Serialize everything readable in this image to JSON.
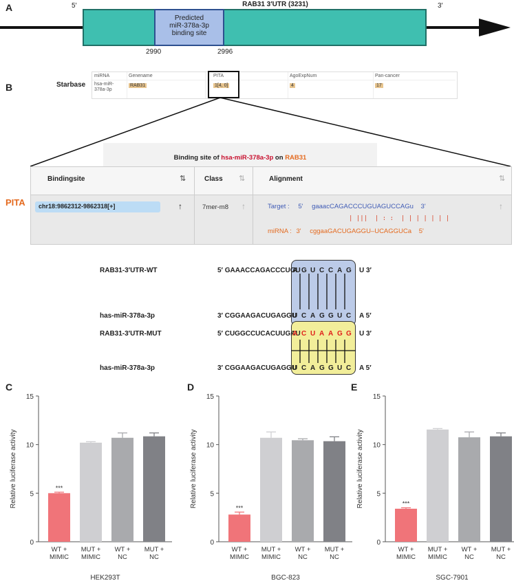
{
  "panelA": {
    "label": "A",
    "five_prime": "5′",
    "three_prime": "3′",
    "title": "RAB31 3′UTR (3231)",
    "site_line1": "Predicted",
    "site_line2": "miR-378a-3p",
    "site_line3": "binding site",
    "pos_start": "2990",
    "pos_end": "2996"
  },
  "panelB": {
    "label": "B",
    "starbase_label": "Starbase",
    "sb_headers": [
      "miRNA",
      "Genename",
      "PITA",
      "AgoExpNum",
      "Pan-cancer"
    ],
    "sb_values": [
      "hsa-miR-378a-3p",
      "RAB31",
      "1[4, 0]",
      "4",
      "17"
    ],
    "pita_label": "PITA",
    "binding_prefix": "Binding site of ",
    "binding_mirna": "hsa-miR-378a-3p",
    "binding_mid": " on ",
    "binding_gene": "RAB31",
    "col_bindingsite": "Bindingsite",
    "col_class": "Class",
    "col_alignment": "Alignment",
    "bindingsite_value": "chr18:9862312-9862318[+]",
    "class_value": "7mer-m8",
    "target_label": "Target :",
    "target_5": "5'",
    "target_seq": "gaaacCAGACCCUGUAGUCCAGu",
    "target_3": "3'",
    "pair_marks": "| |||  | : :  | | | | | | |",
    "mirna_label": "miRNA :",
    "mirna_3": "3'",
    "mirna_seq": "cggaaGACUGAGGU–UCAGGUCa",
    "mirna_5": "5'"
  },
  "seq": {
    "wt_name": "RAB31-3′UTR-WT",
    "wt_prefix": "5′ GAAACCAGACCCUGU",
    "wt_site": [
      "A",
      "G",
      "U",
      "C",
      "C",
      "A",
      "G"
    ],
    "wt_suffix": "U   3′",
    "mir1_name": "has-miR-378a-3p",
    "mir1_prefix": "3′   CGGAAGACUGAGGU",
    "mir_site": [
      "U",
      "C",
      "A",
      "G",
      "G",
      "U",
      "C"
    ],
    "mir1_suffix": "A   5′",
    "mut_name": "RAB31-3′UTR-MUT",
    "mut_prefix": "5′ CUGGCCUCACUUGAU",
    "mut_site": [
      "A",
      "C",
      "U",
      "A",
      "A",
      "G",
      "G"
    ],
    "mut_suffix": "U   3′",
    "mir2_name": "has-miR-378a-3p",
    "mir2_prefix": "3′   CGGAAGACUGAGGU",
    "mir2_suffix": "A   5′"
  },
  "chart_data": [
    {
      "type": "bar",
      "panel": "C",
      "title": "HEK293T",
      "ylabel": "Relative luciferase activity",
      "ylim": [
        0,
        15
      ],
      "yticks": [
        0,
        5,
        10,
        15
      ],
      "categories": [
        [
          "WT +",
          "MIMIC"
        ],
        [
          "MUT +",
          "MIMIC"
        ],
        [
          "WT +",
          "NC"
        ],
        [
          "MUT +",
          "NC"
        ]
      ],
      "values": [
        5.0,
        10.2,
        10.7,
        10.85
      ],
      "errors": [
        0.1,
        0.1,
        0.5,
        0.35
      ],
      "colors": [
        "#f07479",
        "#cfcfd2",
        "#a9aaad",
        "#808186"
      ],
      "annotation": "***"
    },
    {
      "type": "bar",
      "panel": "D",
      "title": "BGC-823",
      "ylabel": "Relative luciferase activity",
      "ylim": [
        0,
        15
      ],
      "yticks": [
        0,
        5,
        10,
        15
      ],
      "categories": [
        [
          "WT +",
          "MIMIC"
        ],
        [
          "MUT +",
          "MIMIC"
        ],
        [
          "WT +",
          "NC"
        ],
        [
          "MUT +",
          "NC"
        ]
      ],
      "values": [
        2.8,
        10.7,
        10.45,
        10.35
      ],
      "errors": [
        0.25,
        0.6,
        0.15,
        0.45
      ],
      "colors": [
        "#f07479",
        "#cfcfd2",
        "#a9aaad",
        "#808186"
      ],
      "annotation": "***"
    },
    {
      "type": "bar",
      "panel": "E",
      "title": "SGC-7901",
      "ylabel": "Relative luciferase activity",
      "ylim": [
        0,
        15
      ],
      "yticks": [
        0,
        5,
        10,
        15
      ],
      "categories": [
        [
          "WT +",
          "MIMIC"
        ],
        [
          "MUT +",
          "MIMIC"
        ],
        [
          "WT +",
          "NC"
        ],
        [
          "MUT +",
          "NC"
        ]
      ],
      "values": [
        3.4,
        11.55,
        10.75,
        10.85
      ],
      "errors": [
        0.1,
        0.1,
        0.55,
        0.35
      ],
      "colors": [
        "#f07479",
        "#cfcfd2",
        "#a9aaad",
        "#808186"
      ],
      "annotation": "***"
    }
  ]
}
